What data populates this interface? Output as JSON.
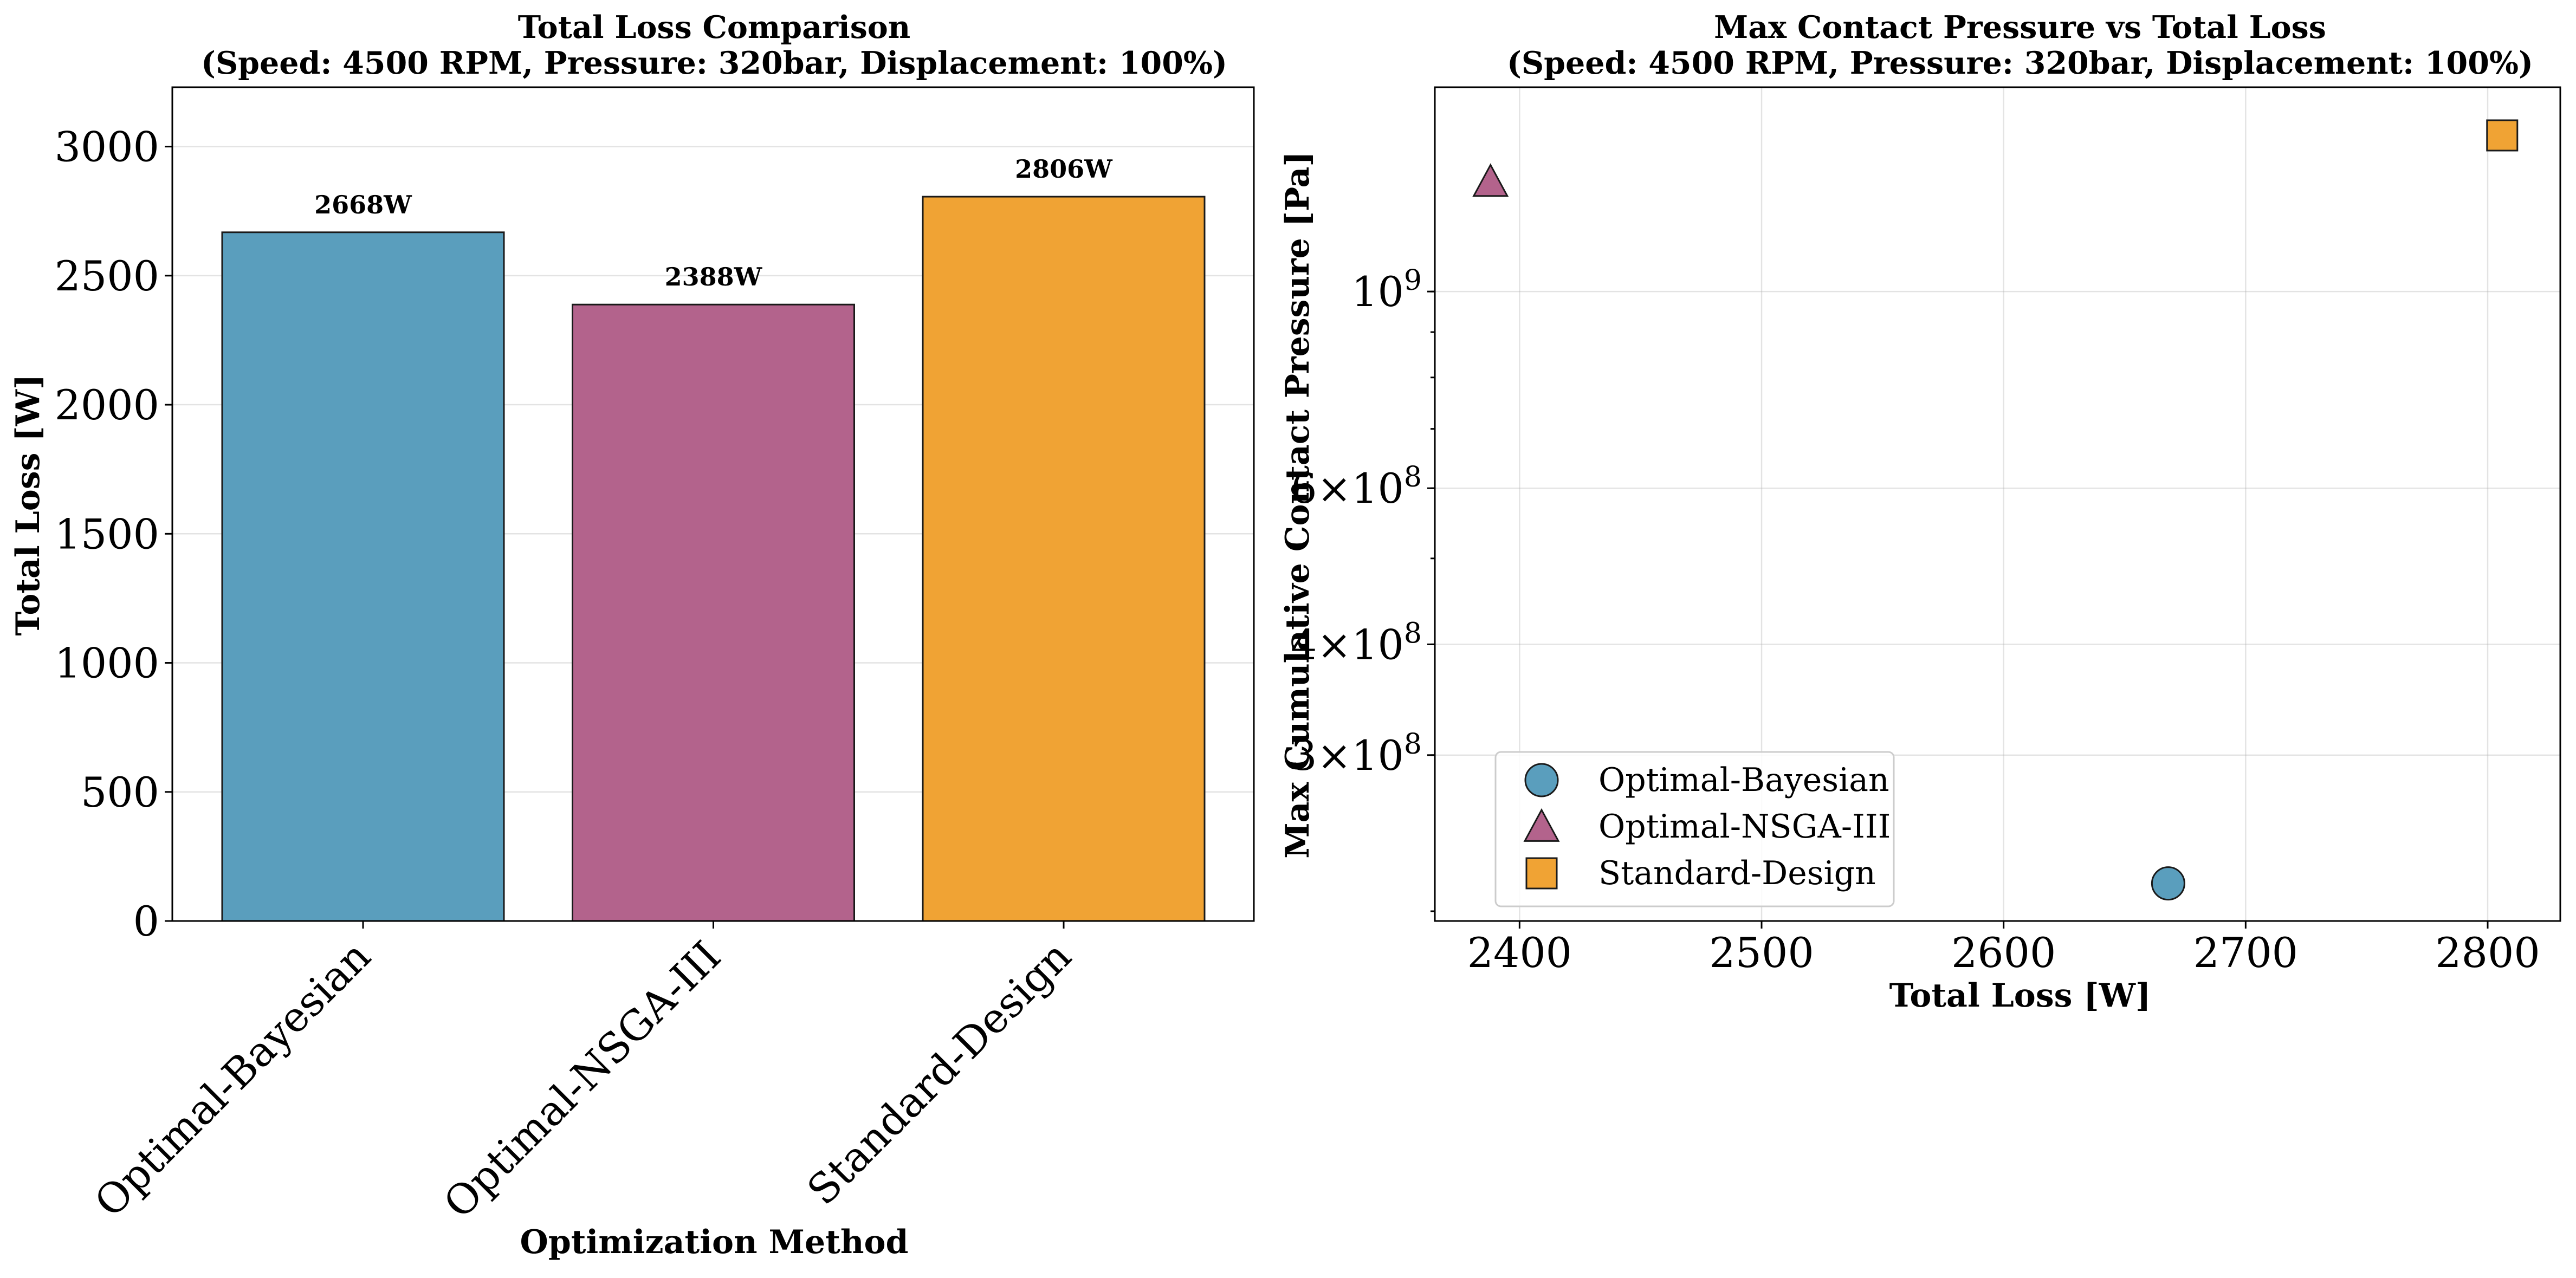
{
  "chart_data": [
    {
      "type": "bar",
      "title": "Total Loss Comparison\n(Speed: 4500 RPM, Pressure: 320bar, Displacement: 100%)",
      "xlabel": "Optimization Method",
      "ylabel": "Total Loss [W]",
      "categories": [
        "Optimal-Bayesian",
        "Optimal-NSGA-III",
        "Standard-Design"
      ],
      "values": [
        2668,
        2388,
        2806
      ],
      "data_labels": [
        "2668W",
        "2388W",
        "2806W"
      ],
      "colors": [
        "#5a9ebd",
        "#b3638c",
        "#f0a334"
      ],
      "ylim": [
        0,
        3230
      ],
      "yticks": [
        0,
        500,
        1000,
        1500,
        2000,
        2500,
        3000
      ],
      "grid": true
    },
    {
      "type": "scatter",
      "title": "Max Contact Pressure vs Total Loss\n(Speed: 4500 RPM, Pressure: 320bar, Displacement: 100%)",
      "xlabel": "Total Loss [W]",
      "ylabel": "Max Cumulative Contact Pressure [Pa]",
      "yscale": "log",
      "xlim": [
        2365,
        2830
      ],
      "ylim": [
        195000000,
        1700000000
      ],
      "xticks": [
        2400,
        2500,
        2600,
        2700,
        2800
      ],
      "yticks": [
        {
          "value": 1000000000,
          "mantissa": "",
          "exponent": "9"
        },
        {
          "value": 600000000,
          "mantissa": "6",
          "exponent": "8"
        },
        {
          "value": 400000000,
          "mantissa": "4",
          "exponent": "8"
        },
        {
          "value": 300000000,
          "mantissa": "3",
          "exponent": "8"
        }
      ],
      "series": [
        {
          "name": "Optimal-Bayesian",
          "marker": "circle",
          "color": "#5a9ebd",
          "x": [
            2668
          ],
          "y": [
            215000000
          ]
        },
        {
          "name": "Optimal-NSGA-III",
          "marker": "triangle",
          "color": "#b3638c",
          "x": [
            2388
          ],
          "y": [
            1330000000
          ]
        },
        {
          "name": "Standard-Design",
          "marker": "square",
          "color": "#f0a334",
          "x": [
            2806
          ],
          "y": [
            1500000000
          ]
        }
      ],
      "legend_position": "lower-left",
      "grid": true
    }
  ]
}
